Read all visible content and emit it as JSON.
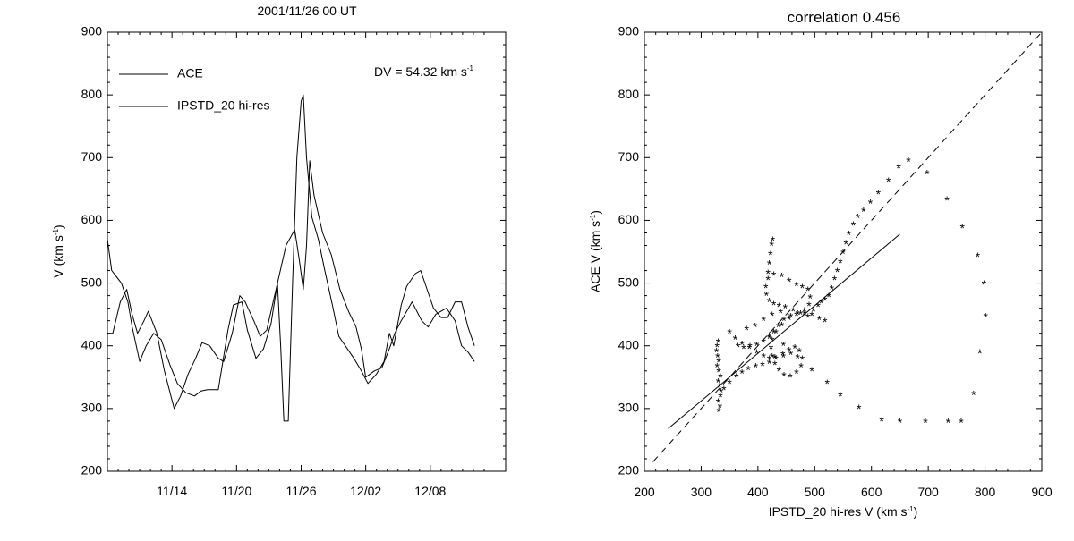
{
  "chart_data": [
    {
      "type": "line",
      "title": "2001/11/26 00 UT",
      "ylabel": "V (km s",
      "ylabel_sup": "-1",
      "ylabel_close": ")",
      "xlabel": "",
      "ylim": [
        200,
        900
      ],
      "xlim": [
        0,
        37
      ],
      "yticks": [
        200,
        300,
        400,
        500,
        600,
        700,
        800,
        900
      ],
      "xticks": [
        {
          "x": 6,
          "label": "11/14"
        },
        {
          "x": 12,
          "label": "11/20"
        },
        {
          "x": 18,
          "label": "11/26"
        },
        {
          "x": 24,
          "label": "12/02"
        },
        {
          "x": 30,
          "label": "12/08"
        }
      ],
      "annotation": "DV = 54.32 km s",
      "annotation_sup": "-1",
      "legend_position": "top-left",
      "series": [
        {
          "name": "ACE",
          "points": [
            [
              0,
              570
            ],
            [
              0.4,
              520
            ],
            [
              1.3,
              500
            ],
            [
              1.9,
              470
            ],
            [
              2.3,
              430
            ],
            [
              3.0,
              375
            ],
            [
              3.6,
              400
            ],
            [
              4.3,
              420
            ],
            [
              5.0,
              410
            ],
            [
              5.8,
              370
            ],
            [
              6.5,
              340
            ],
            [
              7.3,
              325
            ],
            [
              8.1,
              320
            ],
            [
              8.7,
              328
            ],
            [
              9.3,
              330
            ],
            [
              10.3,
              330
            ],
            [
              11.2,
              425
            ],
            [
              11.7,
              465
            ],
            [
              12.5,
              470
            ],
            [
              13.0,
              425
            ],
            [
              13.8,
              380
            ],
            [
              14.5,
              395
            ],
            [
              15.2,
              435
            ],
            [
              15.8,
              500
            ],
            [
              16.6,
              560
            ],
            [
              17.4,
              585
            ],
            [
              17.8,
              540
            ],
            [
              18.2,
              490
            ],
            [
              18.5,
              560
            ],
            [
              18.8,
              695
            ],
            [
              19.2,
              640
            ],
            [
              20.0,
              580
            ],
            [
              20.8,
              545
            ],
            [
              21.6,
              490
            ],
            [
              22.4,
              455
            ],
            [
              23.1,
              430
            ],
            [
              23.6,
              395
            ],
            [
              24.0,
              350
            ],
            [
              24.8,
              360
            ],
            [
              25.5,
              365
            ],
            [
              26.3,
              400
            ],
            [
              26.7,
              420
            ],
            [
              27.3,
              440
            ],
            [
              28.3,
              470
            ],
            [
              29.2,
              440
            ],
            [
              29.8,
              430
            ],
            [
              30.5,
              450
            ],
            [
              31.5,
              460
            ],
            [
              32.3,
              440
            ],
            [
              32.9,
              400
            ],
            [
              33.5,
              390
            ],
            [
              34.1,
              375
            ]
          ]
        },
        {
          "name": "IPSTD_20 hi-res",
          "points": [
            [
              0,
              420
            ],
            [
              0.5,
              420
            ],
            [
              1.2,
              470
            ],
            [
              1.8,
              490
            ],
            [
              2.3,
              450
            ],
            [
              2.8,
              420
            ],
            [
              3.4,
              440
            ],
            [
              3.8,
              455
            ],
            [
              4.6,
              420
            ],
            [
              5.3,
              360
            ],
            [
              6.2,
              300
            ],
            [
              6.8,
              320
            ],
            [
              7.5,
              355
            ],
            [
              8.2,
              380
            ],
            [
              8.8,
              405
            ],
            [
              9.5,
              400
            ],
            [
              10.3,
              380
            ],
            [
              10.8,
              375
            ],
            [
              11.6,
              420
            ],
            [
              12.3,
              480
            ],
            [
              12.8,
              470
            ],
            [
              13.6,
              440
            ],
            [
              14.2,
              415
            ],
            [
              14.8,
              425
            ],
            [
              15.4,
              470
            ],
            [
              15.8,
              500
            ],
            [
              16.1,
              400
            ],
            [
              16.4,
              280
            ],
            [
              16.8,
              280
            ],
            [
              17.2,
              500
            ],
            [
              17.6,
              700
            ],
            [
              18.0,
              790
            ],
            [
              18.2,
              800
            ],
            [
              18.5,
              700
            ],
            [
              19.0,
              605
            ],
            [
              19.6,
              570
            ],
            [
              20.2,
              520
            ],
            [
              20.9,
              465
            ],
            [
              21.5,
              415
            ],
            [
              22.3,
              395
            ],
            [
              22.9,
              380
            ],
            [
              23.6,
              360
            ],
            [
              24.2,
              340
            ],
            [
              25.0,
              355
            ],
            [
              25.7,
              375
            ],
            [
              26.2,
              420
            ],
            [
              26.6,
              400
            ],
            [
              27.3,
              465
            ],
            [
              27.8,
              495
            ],
            [
              28.6,
              515
            ],
            [
              29.1,
              520
            ],
            [
              29.7,
              490
            ],
            [
              30.3,
              460
            ],
            [
              31.0,
              445
            ],
            [
              31.6,
              445
            ],
            [
              32.3,
              470
            ],
            [
              32.9,
              470
            ],
            [
              33.5,
              430
            ],
            [
              34.1,
              400
            ]
          ]
        }
      ]
    },
    {
      "type": "scatter",
      "title": "correlation 0.456",
      "xlabel": "IPSTD_20 hi-res V (km s",
      "ylabel": "ACE V (km s",
      "label_sup": "-1",
      "label_close": ")",
      "xlim": [
        200,
        900
      ],
      "ylim": [
        200,
        900
      ],
      "xticks": [
        200,
        300,
        400,
        500,
        600,
        700,
        800,
        900
      ],
      "yticks": [
        200,
        300,
        400,
        500,
        600,
        700,
        800,
        900
      ],
      "marker": "*",
      "reference_line": {
        "style": "dashed",
        "points": [
          [
            215,
            215
          ],
          [
            900,
            900
          ]
        ]
      },
      "fit_line": {
        "style": "solid",
        "points": [
          [
            242,
            268
          ],
          [
            650,
            578
          ]
        ]
      },
      "points": [
        [
          330,
          405
        ],
        [
          328,
          398
        ],
        [
          327,
          390
        ],
        [
          329,
          382
        ],
        [
          331,
          374
        ],
        [
          328,
          366
        ],
        [
          331,
          358
        ],
        [
          334,
          350
        ],
        [
          330,
          342
        ],
        [
          332,
          334
        ],
        [
          335,
          326
        ],
        [
          334,
          318
        ],
        [
          330,
          310
        ],
        [
          333,
          302
        ],
        [
          331,
          295
        ],
        [
          340,
          330
        ],
        [
          350,
          340
        ],
        [
          362,
          350
        ],
        [
          372,
          356
        ],
        [
          383,
          362
        ],
        [
          396,
          366
        ],
        [
          408,
          368
        ],
        [
          420,
          372
        ],
        [
          432,
          378
        ],
        [
          444,
          385
        ],
        [
          455,
          392
        ],
        [
          465,
          396
        ],
        [
          473,
          390
        ],
        [
          478,
          378
        ],
        [
          476,
          366
        ],
        [
          468,
          356
        ],
        [
          457,
          350
        ],
        [
          446,
          352
        ],
        [
          437,
          360
        ],
        [
          430,
          370
        ],
        [
          425,
          382
        ],
        [
          423,
          395
        ],
        [
          425,
          408
        ],
        [
          432,
          420
        ],
        [
          442,
          432
        ],
        [
          455,
          442
        ],
        [
          468,
          448
        ],
        [
          482,
          450
        ],
        [
          495,
          448
        ],
        [
          508,
          442
        ],
        [
          518,
          438
        ],
        [
          488,
          445
        ],
        [
          475,
          450
        ],
        [
          462,
          455
        ],
        [
          448,
          460
        ],
        [
          437,
          462
        ],
        [
          428,
          465
        ],
        [
          420,
          470
        ],
        [
          415,
          480
        ],
        [
          414,
          492
        ],
        [
          418,
          505
        ],
        [
          428,
          512
        ],
        [
          442,
          510
        ],
        [
          455,
          502
        ],
        [
          468,
          496
        ],
        [
          478,
          492
        ],
        [
          488,
          488
        ],
        [
          492,
          476
        ],
        [
          490,
          464
        ],
        [
          482,
          455
        ],
        [
          470,
          450
        ],
        [
          458,
          446
        ],
        [
          446,
          440
        ],
        [
          436,
          430
        ],
        [
          428,
          420
        ],
        [
          420,
          412
        ],
        [
          410,
          405
        ],
        [
          398,
          400
        ],
        [
          386,
          398
        ],
        [
          375,
          395
        ],
        [
          365,
          398
        ],
        [
          380,
          425
        ],
        [
          395,
          430
        ],
        [
          410,
          440
        ],
        [
          425,
          448
        ],
        [
          440,
          452
        ],
        [
          418,
          515
        ],
        [
          420,
          530
        ],
        [
          422,
          545
        ],
        [
          424,
          560
        ],
        [
          426,
          568
        ],
        [
          350,
          420
        ],
        [
          360,
          410
        ],
        [
          372,
          402
        ],
        [
          385,
          395
        ],
        [
          398,
          388
        ],
        [
          410,
          382
        ],
        [
          420,
          378
        ],
        [
          430,
          380
        ],
        [
          445,
          382
        ],
        [
          458,
          386
        ],
        [
          498,
          455
        ],
        [
          506,
          462
        ],
        [
          512,
          468
        ],
        [
          518,
          472
        ],
        [
          525,
          478
        ],
        [
          530,
          490
        ],
        [
          535,
          505
        ],
        [
          540,
          518
        ],
        [
          545,
          532
        ],
        [
          550,
          547
        ],
        [
          555,
          562
        ],
        [
          560,
          577
        ],
        [
          568,
          592
        ],
        [
          576,
          604
        ],
        [
          586,
          614
        ],
        [
          598,
          627
        ],
        [
          612,
          642
        ],
        [
          630,
          662
        ],
        [
          648,
          683
        ],
        [
          665,
          694
        ],
        [
          698,
          674
        ],
        [
          733,
          632
        ],
        [
          760,
          588
        ],
        [
          787,
          542
        ],
        [
          798,
          498
        ],
        [
          801,
          446
        ],
        [
          791,
          388
        ],
        [
          780,
          322
        ],
        [
          758,
          278
        ],
        [
          735,
          278
        ],
        [
          695,
          278
        ],
        [
          650,
          278
        ],
        [
          618,
          280
        ],
        [
          578,
          300
        ],
        [
          545,
          320
        ],
        [
          522,
          340
        ],
        [
          495,
          360
        ],
        [
          470,
          380
        ],
        [
          445,
          400
        ],
        [
          420,
          415
        ]
      ]
    }
  ],
  "legend": {
    "items": [
      "ACE",
      "IPSTD_20 hi-res"
    ]
  }
}
